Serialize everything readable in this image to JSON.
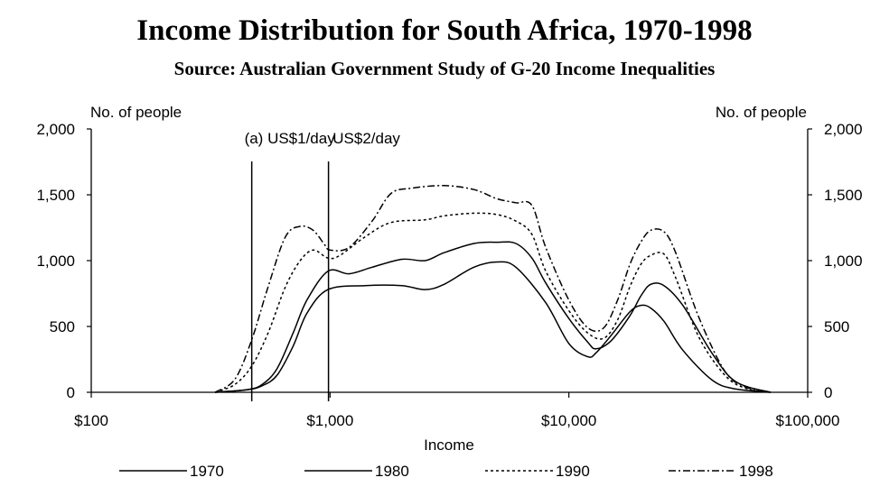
{
  "chart_data": {
    "type": "line",
    "title": "Income Distribution for South Africa, 1970-1998",
    "subtitle": "Source: Australian Government Study of  G-20 Income Inequalities",
    "xlabel": "Income",
    "ylabel_left": "No. of people",
    "ylabel_right": "No. of people",
    "x_scale": "log",
    "xlim": [
      100,
      100000
    ],
    "ylim": [
      0,
      2000
    ],
    "x_ticks": [
      {
        "value": 100,
        "label": "$100"
      },
      {
        "value": 1000,
        "label": "$1,000"
      },
      {
        "value": 10000,
        "label": "$10,000"
      },
      {
        "value": 100000,
        "label": "$100,000"
      }
    ],
    "y_ticks": [
      {
        "value": 0,
        "label": "0"
      },
      {
        "value": 500,
        "label": "500"
      },
      {
        "value": 1000,
        "label": "1,000"
      },
      {
        "value": 1500,
        "label": "1,500"
      },
      {
        "value": 2000,
        "label": "2,000"
      }
    ],
    "reference_lines": [
      {
        "x": 470,
        "label": "(a) US$1/day"
      },
      {
        "x": 985,
        "label": "US$2/day"
      }
    ],
    "legend_position": "bottom",
    "series": [
      {
        "name": "1970",
        "style": "solid",
        "x": [
          330,
          450,
          520,
          600,
          700,
          800,
          980,
          1400,
          2000,
          2500,
          3000,
          4000,
          5000,
          6000,
          8000,
          10000,
          12000,
          13000,
          15000,
          18000,
          20000,
          22000,
          25000,
          30000,
          40000,
          50000,
          70000
        ],
        "y": [
          0,
          20,
          50,
          130,
          350,
          600,
          780,
          810,
          810,
          780,
          820,
          950,
          990,
          950,
          680,
          370,
          270,
          300,
          430,
          610,
          660,
          640,
          540,
          320,
          90,
          25,
          0
        ]
      },
      {
        "name": "1980",
        "style": "solid",
        "x": [
          330,
          450,
          520,
          600,
          700,
          800,
          980,
          1200,
          1500,
          2000,
          2500,
          3000,
          4000,
          5000,
          6000,
          7000,
          8000,
          10000,
          12000,
          13000,
          15000,
          18000,
          20000,
          22000,
          25000,
          30000,
          40000,
          50000,
          70000
        ],
        "y": [
          0,
          20,
          60,
          180,
          450,
          700,
          920,
          900,
          950,
          1010,
          1000,
          1060,
          1130,
          1140,
          1130,
          1020,
          830,
          560,
          380,
          330,
          390,
          580,
          730,
          820,
          810,
          660,
          290,
          80,
          0
        ]
      },
      {
        "name": "1990",
        "style": "dotted",
        "x": [
          330,
          400,
          470,
          550,
          650,
          750,
          850,
          980,
          1100,
          1400,
          1800,
          2500,
          3000,
          4000,
          5000,
          6000,
          7000,
          8000,
          10000,
          12000,
          14000,
          16000,
          18000,
          20000,
          22000,
          25000,
          28000,
          35000,
          45000,
          55000,
          70000
        ],
        "y": [
          0,
          60,
          200,
          450,
          800,
          1000,
          1080,
          1020,
          1040,
          1180,
          1290,
          1310,
          1340,
          1360,
          1350,
          1300,
          1200,
          920,
          620,
          450,
          410,
          550,
          800,
          970,
          1040,
          1050,
          870,
          420,
          130,
          30,
          0
        ]
      },
      {
        "name": "1998",
        "style": "dashdot",
        "x": [
          330,
          400,
          470,
          550,
          650,
          750,
          850,
          950,
          1000,
          1200,
          1500,
          1800,
          2200,
          3000,
          4000,
          5000,
          6000,
          7000,
          8000,
          10000,
          12000,
          14000,
          16000,
          18000,
          20000,
          22000,
          25000,
          28000,
          35000,
          45000,
          55000,
          70000
        ],
        "y": [
          0,
          100,
          400,
          800,
          1180,
          1260,
          1230,
          1120,
          1080,
          1100,
          1300,
          1510,
          1550,
          1570,
          1540,
          1470,
          1440,
          1420,
          1100,
          700,
          490,
          490,
          700,
          970,
          1140,
          1230,
          1220,
          1060,
          570,
          160,
          40,
          0
        ]
      }
    ]
  }
}
